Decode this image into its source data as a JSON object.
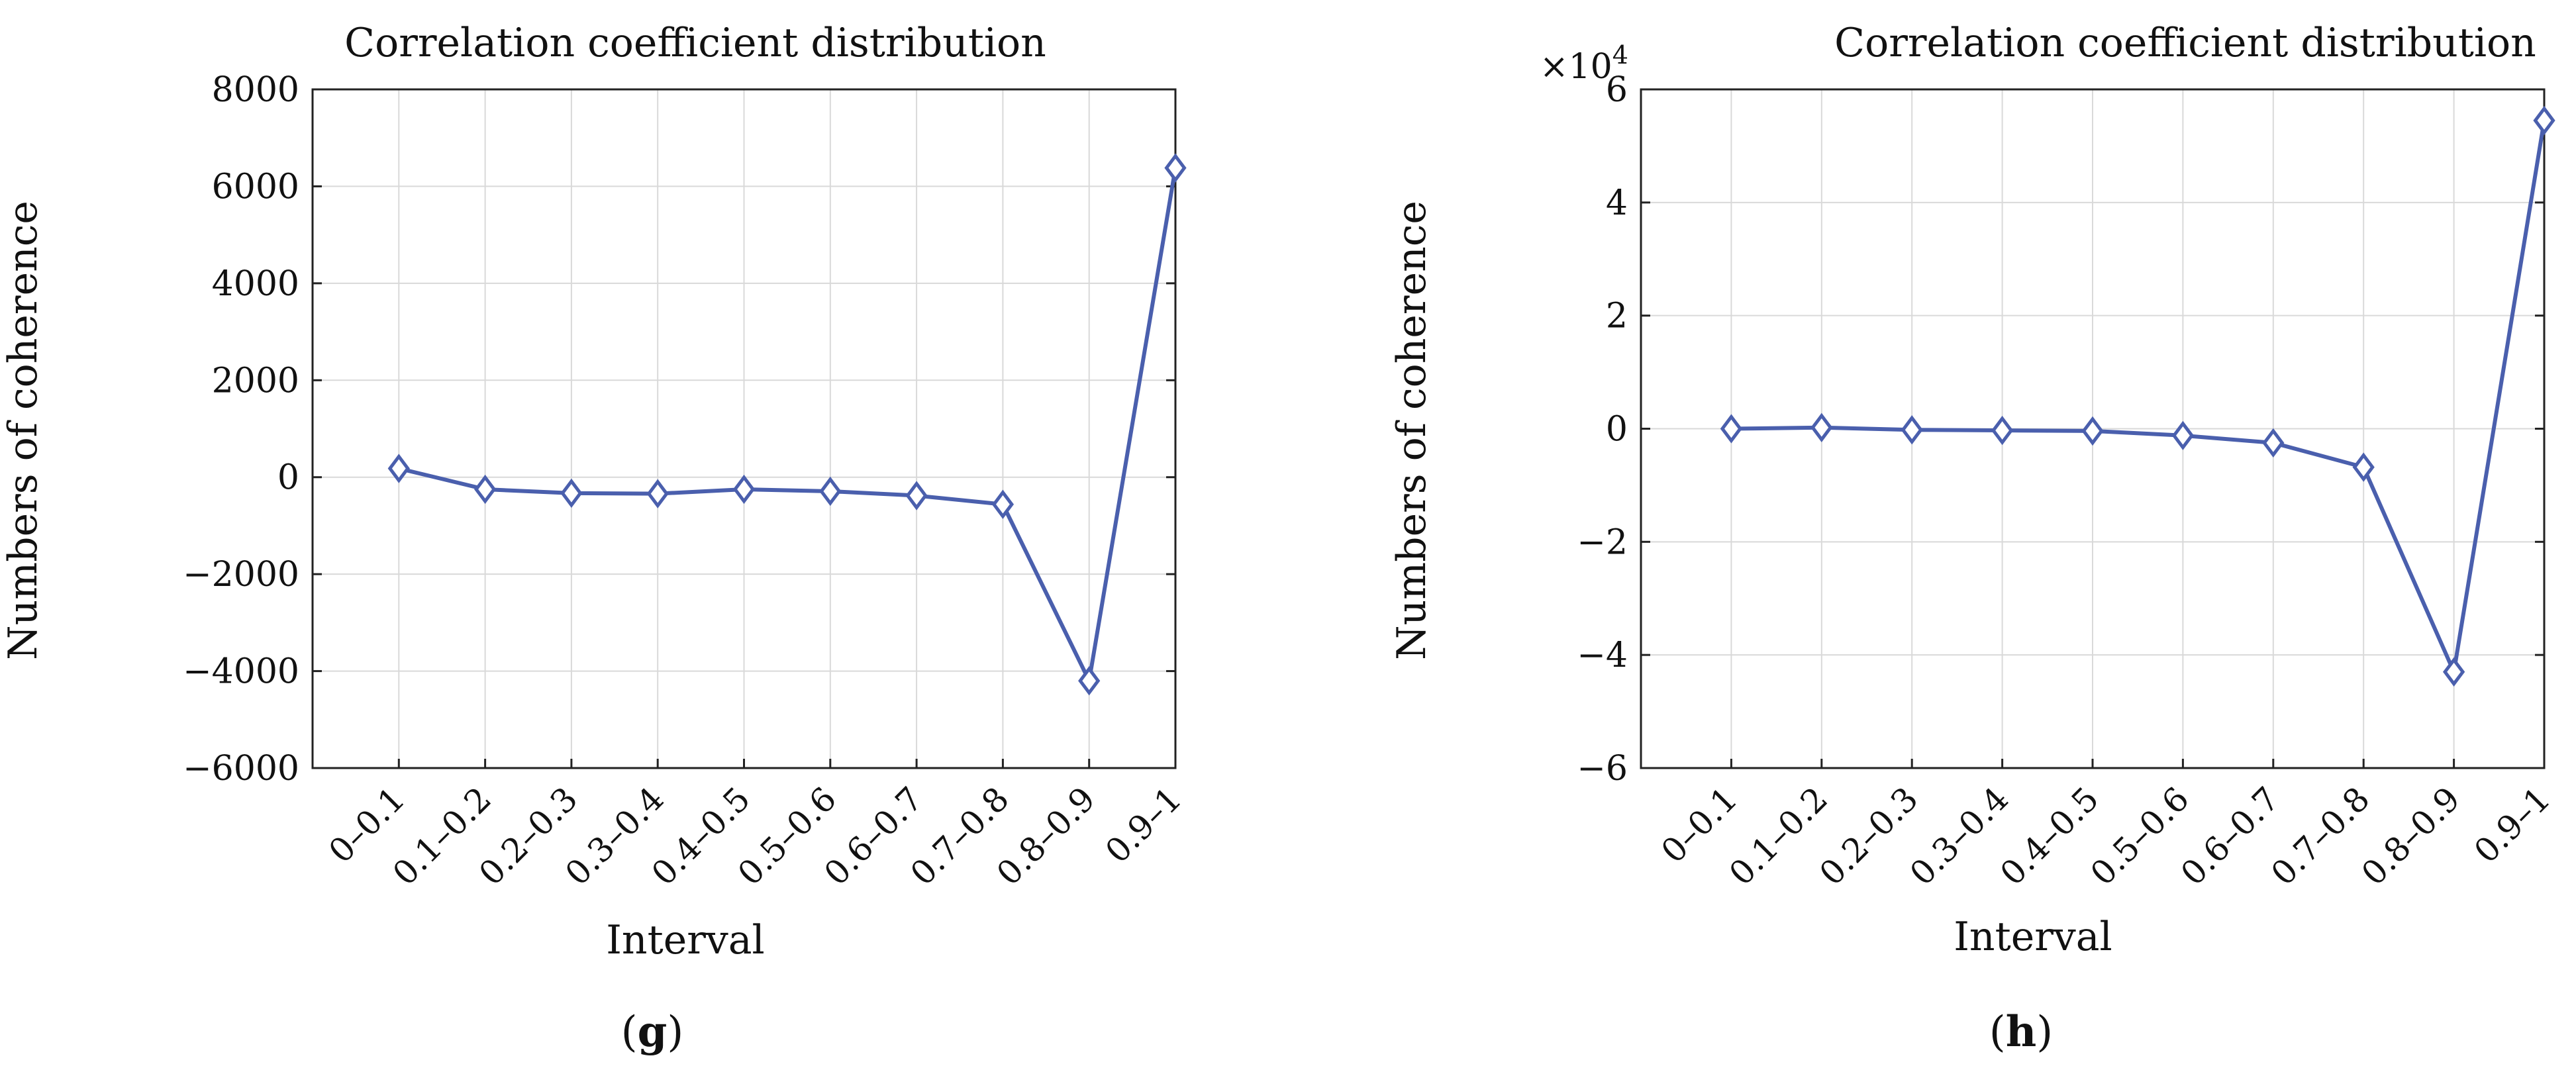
{
  "colors": {
    "series": "#4a5fad"
  },
  "chart_data": [
    {
      "type": "line",
      "panel": "g",
      "caption_letter": "g",
      "caption_open": "(",
      "caption_close": ")",
      "title": "Correlation coefficient distribution",
      "xlabel": "Interval",
      "ylabel": "Numbers of coherence",
      "exponent_label": "",
      "ylim": [
        -6000,
        8000
      ],
      "ytick_values": [
        -6000,
        -4000,
        -2000,
        0,
        2000,
        4000,
        6000,
        8000
      ],
      "ytick_labels": [
        "−6000",
        "−4000",
        "−2000",
        "0",
        "2000",
        "4000",
        "6000",
        "8000"
      ],
      "grid": true,
      "categories": [
        "0–0.1",
        "0.1–0.2",
        "0.2–0.3",
        "0.3–0.4",
        "0.4–0.5",
        "0.5–0.6",
        "0.6–0.7",
        "0.7–0.8",
        "0.8–0.9",
        "0.9–1"
      ],
      "series": [
        {
          "name": "coherence",
          "marker": "diamond",
          "values": [
            180,
            -250,
            -330,
            -340,
            -250,
            -290,
            -380,
            -560,
            -4200,
            6380
          ]
        }
      ]
    },
    {
      "type": "line",
      "panel": "h",
      "caption_letter": "h",
      "caption_open": "(",
      "caption_close": ")",
      "title": "Correlation coefficient distribution",
      "xlabel": "Interval",
      "ylabel": "Numbers of coherence",
      "exponent_label": "×10",
      "exponent_power": "4",
      "ylim": [
        -6,
        6
      ],
      "ytick_values": [
        -6,
        -4,
        -2,
        0,
        2,
        4,
        6
      ],
      "ytick_labels": [
        "−6",
        "−4",
        "−2",
        "0",
        "2",
        "4",
        "6"
      ],
      "grid": true,
      "categories": [
        "0–0.1",
        "0.1–0.2",
        "0.2–0.3",
        "0.3–0.4",
        "0.4–0.5",
        "0.5–0.6",
        "0.6–0.7",
        "0.7–0.8",
        "0.8–0.9",
        "0.9–1"
      ],
      "series": [
        {
          "name": "coherence",
          "marker": "diamond",
          "values": [
            0.0,
            0.02,
            -0.02,
            -0.03,
            -0.04,
            -0.12,
            -0.25,
            -0.68,
            -4.3,
            5.45
          ]
        }
      ]
    }
  ]
}
